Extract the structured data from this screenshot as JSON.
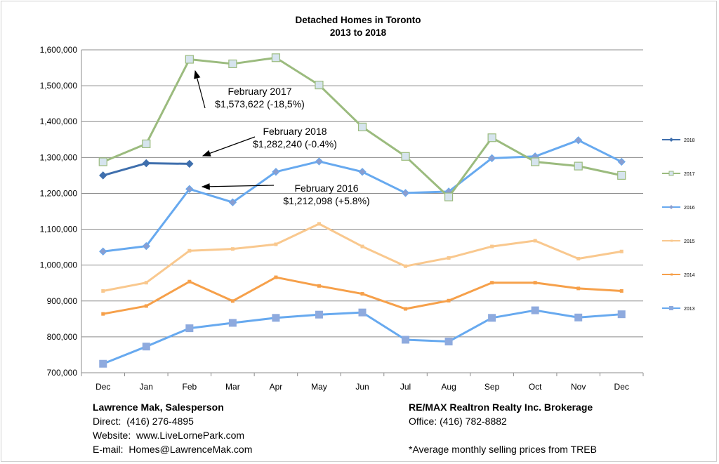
{
  "chart_data": {
    "type": "line",
    "title": [
      "Detached Homes in Toronto",
      "2013 to 2018"
    ],
    "categories": [
      "Dec",
      "Jan",
      "Feb",
      "Mar",
      "Apr",
      "May",
      "Jun",
      "Jul",
      "Aug",
      "Sep",
      "Oct",
      "Nov",
      "Dec"
    ],
    "y_ticks": [
      "700,000",
      "800,000",
      "900,000",
      "1,000,000",
      "1,100,000",
      "1,200,000",
      "1,300,000",
      "1,400,000",
      "1,500,000",
      "1,600,000"
    ],
    "ylim": [
      700000,
      1600000
    ],
    "grid": true,
    "legend_position": "right",
    "series": [
      {
        "name": "2018",
        "color": "#3f6fad",
        "marker": "diamond",
        "stroke_width": 3,
        "values": [
          1250000,
          1284000,
          1282240,
          null,
          null,
          null,
          null,
          null,
          null,
          null,
          null,
          null,
          null
        ]
      },
      {
        "name": "2017",
        "color": "#9bbb7e",
        "marker": "square-light",
        "stroke_width": 3,
        "values": [
          1288000,
          1338000,
          1573622,
          1561000,
          1578000,
          1502000,
          1385000,
          1303000,
          1190000,
          1355000,
          1288000,
          1276000,
          1250000
        ]
      },
      {
        "name": "2016",
        "color": "#67a9ef",
        "marker": "diamond",
        "stroke_width": 3,
        "values": [
          1038000,
          1053000,
          1212098,
          1175000,
          1260000,
          1289000,
          1260000,
          1201000,
          1205000,
          1298000,
          1303000,
          1348000,
          1288000
        ]
      },
      {
        "name": "2015",
        "color": "#f9c88e",
        "marker": "small",
        "stroke_width": 3,
        "values": [
          928000,
          951000,
          1040000,
          1045000,
          1058000,
          1115000,
          1052000,
          997000,
          1020000,
          1052000,
          1068000,
          1018000,
          1038000
        ]
      },
      {
        "name": "2014",
        "color": "#f6a04a",
        "marker": "small",
        "stroke_width": 3,
        "values": [
          864000,
          886000,
          954000,
          900000,
          966000,
          942000,
          920000,
          878000,
          901000,
          951000,
          951000,
          935000,
          928000
        ]
      },
      {
        "name": "2013",
        "color": "#67a9ef",
        "marker": "square",
        "stroke_width": 3,
        "values": [
          725000,
          773000,
          824000,
          839000,
          853000,
          862000,
          868000,
          792000,
          787000,
          853000,
          874000,
          854000,
          863000
        ]
      }
    ],
    "annotations": [
      {
        "series": "2017",
        "category_index": 2,
        "lines": [
          "February 2017",
          "$1,573,622 (-18,5%)"
        ]
      },
      {
        "series": "2018",
        "category_index": 2,
        "lines": [
          "February 2018",
          "$1,282,240 (-0.4%)"
        ]
      },
      {
        "series": "2016",
        "category_index": 2,
        "lines": [
          "February 2016",
          "$1,212,098 (+5.8%)"
        ]
      }
    ]
  },
  "footer": {
    "left": {
      "name": "Lawrence Mak, Salesperson",
      "direct": "Direct:  (416) 276-4895",
      "website": "Website:  www.LiveLornePark.com",
      "email": "E-mail:  Homes@LawrenceMak.com"
    },
    "right": {
      "brokerage": "RE/MAX Realtron Realty Inc. Brokerage",
      "office": "Office: (416) 782-8882",
      "note": "*Average monthly selling prices from TREB"
    }
  }
}
